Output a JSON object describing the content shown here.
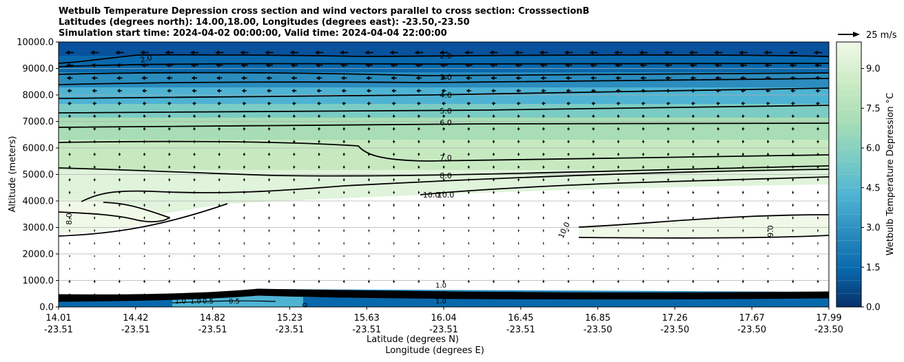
{
  "chart_data": {
    "type": "contour",
    "title_lines": [
      "Wetbulb Temperature Depression cross section and wind vectors parallel to cross section: CrosssectionB",
      "Latitudes (degrees north): 14.00,18.00, Longitudes (degrees east): -23.50,-23.50",
      "Simulation start time: 2024-04-02 00:00:00, Valid time: 2024-04-04 22:00:00"
    ],
    "ylabel": "Altitude (meters)",
    "xlabel_lat": "Latitude (degrees N)",
    "xlabel_lon": "Longitude (degrees E)",
    "ylim": [
      0,
      10000
    ],
    "xlim": [
      14.01,
      17.99
    ],
    "y_ticks": [
      0,
      1000,
      2000,
      3000,
      4000,
      5000,
      6000,
      7000,
      8000,
      9000,
      10000
    ],
    "y_tick_labels": [
      "0.0",
      "1000.0",
      "2000.0",
      "3000.0",
      "4000.0",
      "5000.0",
      "6000.0",
      "7000.0",
      "8000.0",
      "9000.0",
      "10000.0"
    ],
    "x_ticks": [
      {
        "lat": "14.01",
        "lon": "-23.51"
      },
      {
        "lat": "14.42",
        "lon": "-23.51"
      },
      {
        "lat": "14.82",
        "lon": "-23.51"
      },
      {
        "lat": "15.23",
        "lon": "-23.51"
      },
      {
        "lat": "15.63",
        "lon": "-23.51"
      },
      {
        "lat": "16.04",
        "lon": "-23.51"
      },
      {
        "lat": "16.45",
        "lon": "-23.51"
      },
      {
        "lat": "16.85",
        "lon": "-23.50"
      },
      {
        "lat": "17.26",
        "lon": "-23.50"
      },
      {
        "lat": "17.67",
        "lon": "-23.50"
      },
      {
        "lat": "17.99",
        "lon": "-23.50"
      }
    ],
    "colorbar": {
      "label": "Wetbulb Temperature Depression °C",
      "min": 0,
      "max": 10,
      "ticks": [
        "0.0",
        "1.5",
        "3.0",
        "4.5",
        "6.0",
        "7.5",
        "9.0"
      ],
      "tick_values": [
        0,
        1.5,
        3,
        4.5,
        6,
        7.5,
        9
      ],
      "colormap": "GnBu_r",
      "color_stops": [
        "#08306b",
        "#0868ac",
        "#2b8cbe",
        "#4eb3d3",
        "#7bccc4",
        "#a8ddb5",
        "#ccebc5",
        "#f0f9e8"
      ]
    },
    "contour_levels": [
      {
        "label": "2.0",
        "altitude_m": 9450
      },
      {
        "label": "3.0",
        "altitude_m": 8750
      },
      {
        "label": "4.0",
        "altitude_m": 8050
      },
      {
        "label": "5.0",
        "altitude_m": 7350
      },
      {
        "label": "6.0",
        "altitude_m": 6800
      },
      {
        "label": "7.0",
        "altitude_m": 5550
      },
      {
        "label": "8.0",
        "altitude_m": 5000
      },
      {
        "label": "10.0",
        "altitude_m": 4300
      }
    ],
    "extra_contour_labels": [
      "2.0",
      "8.0",
      "10.0",
      "10.0",
      "9.0",
      "1.0",
      "1.0",
      "0.5",
      "1.0",
      "0.5",
      "1.0",
      "1.0",
      "0"
    ],
    "wind_key": {
      "speed": 25,
      "unit": "m/s",
      "label": "25 m/s"
    },
    "wind_regimes": [
      {
        "altitude_m": 9600,
        "direction": "toward south",
        "speed_ms": 13
      },
      {
        "altitude_m": 8400,
        "direction": "toward south",
        "speed_ms": 8
      },
      {
        "altitude_m": 7200,
        "direction": "toward south",
        "speed_ms": 4
      },
      {
        "altitude_m": 5000,
        "direction": "toward south",
        "speed_ms": 3
      },
      {
        "altitude_m": 3000,
        "direction": "toward south",
        "speed_ms": 2
      },
      {
        "altitude_m": 1500,
        "direction": "calm",
        "speed_ms": 1
      },
      {
        "altitude_m": 500,
        "direction": "toward north",
        "speed_ms": 6
      }
    ]
  }
}
